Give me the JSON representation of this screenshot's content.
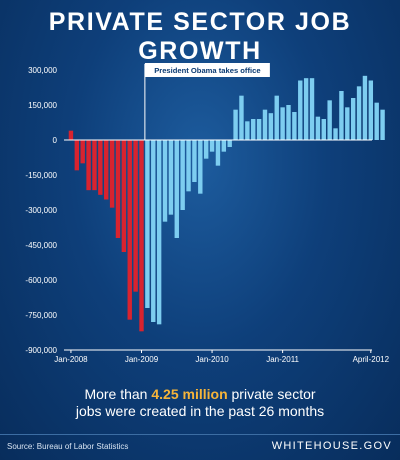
{
  "title": "PRIVATE SECTOR JOB GROWTH",
  "bottom_text": {
    "line1_pre": "More than ",
    "line1_highlight": "4.25 million",
    "line1_post": " private sector",
    "line2": "jobs were created in the past 26 months"
  },
  "footer": {
    "source": "Source: Bureau of Labor Statistics",
    "brand": "WHITEHOUSE.GOV"
  },
  "colors": {
    "pre_obama": "#d8232f",
    "post_obama": "#7dcdf0",
    "background": "#0e3f7a",
    "highlight": "#f6b43a"
  },
  "chart_data": {
    "type": "bar",
    "title": "PRIVATE SECTOR JOB GROWTH",
    "ylim": [
      -900000,
      300000
    ],
    "yticks": [
      300000,
      150000,
      0,
      -150000,
      -300000,
      -450000,
      -600000,
      -750000,
      -900000
    ],
    "ytick_labels": [
      "300,000",
      "150,000",
      "0",
      "-150,000",
      "-300,000",
      "-450,000",
      "-600,000",
      "-750,000",
      "-900,000"
    ],
    "xtick_labels": [
      {
        "label": "Jan-2008",
        "index": 0
      },
      {
        "label": "Jan-2009",
        "index": 12
      },
      {
        "label": "Jan-2010",
        "index": 24
      },
      {
        "label": "Jan-2011",
        "index": 36
      },
      {
        "label": "April-2012",
        "index": 51
      }
    ],
    "annotation": {
      "text": "President Obama takes office",
      "index": 13
    },
    "grid": false,
    "series": [
      {
        "color": "#d8232f",
        "start_index": 0,
        "values": [
          40000,
          -130000,
          -100000,
          -215000,
          -215000,
          -235000,
          -255000,
          -290000,
          -420000,
          -480000,
          -770000,
          -650000,
          -820000
        ]
      },
      {
        "color": "#7dcdf0",
        "start_index": 13,
        "values": [
          -720000,
          -780000,
          -790000,
          -350000,
          -320000,
          -420000,
          -300000,
          -220000,
          -180000,
          -230000,
          -80000,
          -50000,
          -110000,
          -50000,
          -30000,
          130000,
          190000,
          80000,
          90000,
          90000,
          130000,
          115000,
          190000,
          140000,
          150000,
          120000,
          255000,
          265000,
          265000,
          100000,
          90000,
          170000,
          50000,
          210000,
          140000,
          180000,
          230000,
          275000,
          255000,
          160000,
          130000
        ]
      }
    ]
  }
}
